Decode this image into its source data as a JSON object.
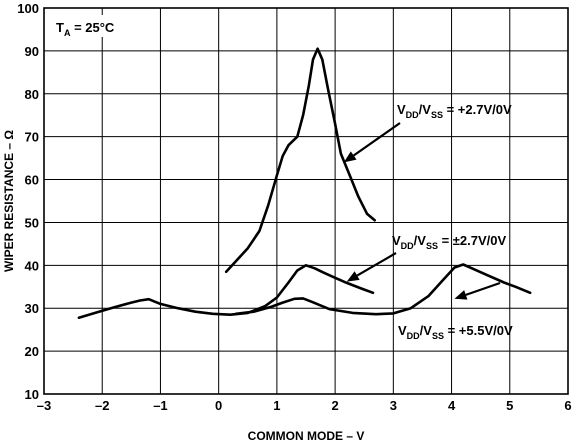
{
  "chart_data": {
    "type": "line",
    "xlabel": "COMMON MODE – V",
    "ylabel": "WIPER RESISTANCE – Ω",
    "xlim": [
      -3,
      6
    ],
    "ylim": [
      10,
      100
    ],
    "x_ticks": [
      "–3",
      "–2",
      "–1",
      "0",
      "1",
      "2",
      "3",
      "4",
      "5",
      "6"
    ],
    "y_ticks": [
      "10",
      "20",
      "30",
      "40",
      "50",
      "60",
      "70",
      "80",
      "90",
      "100"
    ],
    "grid": true,
    "condition": {
      "main": "T",
      "sub": "A",
      "rest": " = 25°C"
    },
    "series": [
      {
        "name": "VDD/VSS = +2.7V/0V",
        "label": {
          "v1": "V",
          "s1": "DD",
          "slash": "/V",
          "s2": "SS",
          "rest": " = +2.7V/0V"
        },
        "x": [
          0.13,
          0.3,
          0.5,
          0.7,
          0.85,
          1.0,
          1.1,
          1.2,
          1.35,
          1.45,
          1.55,
          1.62,
          1.7,
          1.78,
          1.88,
          2.0,
          2.1,
          2.25,
          2.4,
          2.55,
          2.68
        ],
        "y": [
          38.5,
          41,
          44,
          48,
          54,
          61,
          65.5,
          68,
          70,
          75,
          82,
          88,
          90.5,
          88,
          81,
          73,
          66,
          61,
          56,
          52,
          50.5
        ]
      },
      {
        "name": "VDD/VSS = ±2.7V/0V",
        "label": {
          "v1": "V",
          "s1": "DD",
          "slash": "/V",
          "s2": "SS",
          "rest": " = ±2.7V/0V"
        },
        "x": [
          -2.4,
          -2.1,
          -1.8,
          -1.5,
          -1.35,
          -1.2,
          -1.0,
          -0.7,
          -0.4,
          -0.1,
          0.2,
          0.5,
          0.8,
          1.0,
          1.2,
          1.35,
          1.5,
          1.65,
          1.8,
          2.0,
          2.2,
          2.45,
          2.65
        ],
        "y": [
          27.8,
          29,
          30.2,
          31.3,
          31.8,
          32.1,
          31,
          30,
          29.2,
          28.7,
          28.5,
          28.9,
          30.5,
          32.5,
          36,
          38.8,
          40,
          39.3,
          38.3,
          37.1,
          35.9,
          34.6,
          33.6
        ]
      },
      {
        "name": "VDD/VSS = +5.5V/0V",
        "label": {
          "v1": "V",
          "s1": "DD",
          "slash": "/V",
          "s2": "SS",
          "rest": " = +5.5V/0V"
        },
        "x": [
          0.3,
          0.6,
          0.9,
          1.1,
          1.3,
          1.45,
          1.6,
          1.9,
          2.3,
          2.7,
          3.0,
          3.3,
          3.6,
          3.85,
          4.05,
          4.2,
          4.35,
          4.6,
          4.9,
          5.1,
          5.35
        ],
        "y": [
          28.7,
          29.2,
          30.3,
          31.3,
          32.2,
          32.3,
          31.5,
          29.8,
          28.9,
          28.6,
          28.8,
          30.0,
          32.8,
          36.5,
          39.5,
          40.2,
          39.3,
          37.8,
          36.0,
          35.0,
          33.6
        ]
      }
    ]
  }
}
